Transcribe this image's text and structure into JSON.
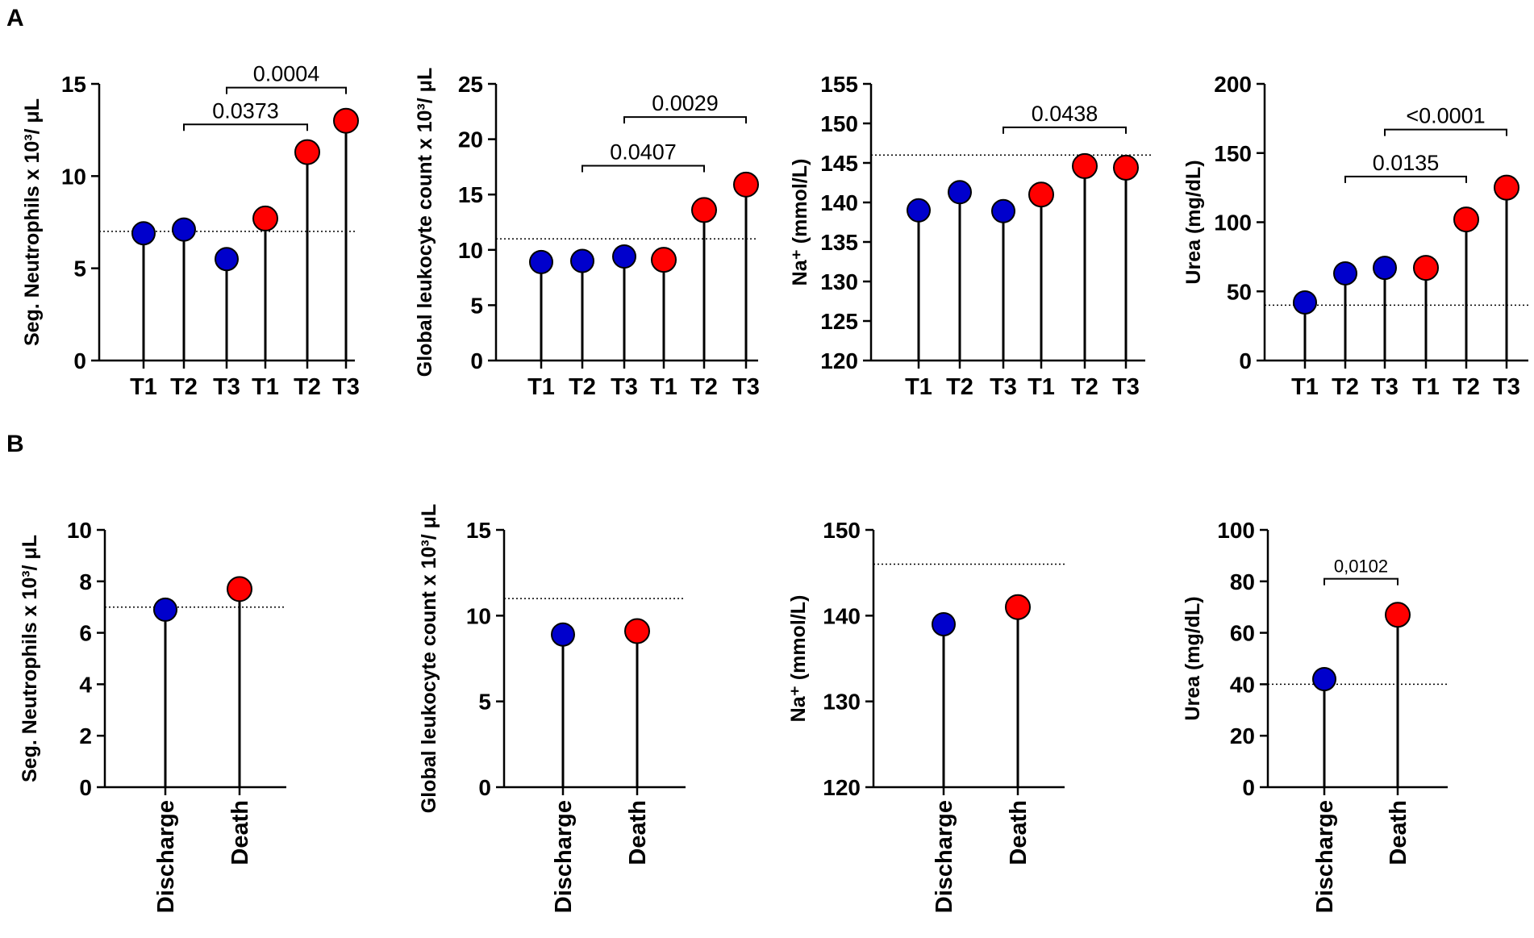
{
  "panels": {
    "A": "A",
    "B": "B"
  },
  "colors": {
    "survivor": "#0000cc",
    "death": "#ff0000"
  },
  "chart_data": [
    {
      "id": "A1",
      "type": "lollipop",
      "panel": "A",
      "ylabel": "Seg. Neutrophils x 10³/ μL",
      "ylim": [
        0,
        15
      ],
      "yticks": [
        0,
        5,
        10,
        15
      ],
      "categories": [
        "T1",
        "T2",
        "T3",
        "T1",
        "T2",
        "T3"
      ],
      "values": [
        6.9,
        7.1,
        5.5,
        7.7,
        11.3,
        13.0
      ],
      "groups": [
        "discharge",
        "discharge",
        "discharge",
        "death",
        "death",
        "death"
      ],
      "reference": 7.0,
      "comparisons": [
        {
          "from": 1,
          "to": 4,
          "y": 12.8,
          "label": "0.0373"
        },
        {
          "from": 2,
          "to": 5,
          "y": 14.8,
          "label": "0.0004"
        }
      ]
    },
    {
      "id": "A2",
      "type": "lollipop",
      "panel": "A",
      "ylabel": "Global leukocyte count x 10³/ μL",
      "ylim": [
        0,
        25
      ],
      "yticks": [
        0,
        5,
        10,
        15,
        20,
        25
      ],
      "categories": [
        "T1",
        "T2",
        "T3",
        "T1",
        "T2",
        "T3"
      ],
      "values": [
        8.9,
        9.0,
        9.4,
        9.1,
        13.6,
        15.9
      ],
      "groups": [
        "discharge",
        "discharge",
        "discharge",
        "death",
        "death",
        "death"
      ],
      "reference": 11.0,
      "comparisons": [
        {
          "from": 1,
          "to": 4,
          "y": 17.6,
          "label": "0.0407"
        },
        {
          "from": 2,
          "to": 5,
          "y": 22.0,
          "label": "0.0029"
        }
      ]
    },
    {
      "id": "A3",
      "type": "lollipop",
      "panel": "A",
      "ylabel": "Na⁺ (mmol/L)",
      "ylim": [
        120,
        155
      ],
      "yticks": [
        120,
        125,
        130,
        135,
        140,
        145,
        150,
        155
      ],
      "categories": [
        "T1",
        "T2",
        "T3",
        "T1",
        "T2",
        "T3"
      ],
      "values": [
        139.0,
        141.3,
        138.9,
        141.0,
        144.6,
        144.4
      ],
      "groups": [
        "discharge",
        "discharge",
        "discharge",
        "death",
        "death",
        "death"
      ],
      "reference": 146.0,
      "comparisons": [
        {
          "from": 2,
          "to": 5,
          "y": 149.5,
          "label": "0.0438"
        }
      ]
    },
    {
      "id": "A4",
      "type": "lollipop",
      "panel": "A",
      "ylabel": "Urea (mg/dL)",
      "ylim": [
        0,
        200
      ],
      "yticks": [
        0,
        50,
        100,
        150,
        200
      ],
      "categories": [
        "T1",
        "T2",
        "T3",
        "T1",
        "T2",
        "T3"
      ],
      "values": [
        42,
        63,
        67,
        67,
        102,
        125
      ],
      "groups": [
        "discharge",
        "discharge",
        "discharge",
        "death",
        "death",
        "death"
      ],
      "reference": 40,
      "comparisons": [
        {
          "from": 1,
          "to": 4,
          "y": 133,
          "label": "0.0135"
        },
        {
          "from": 2,
          "to": 5,
          "y": 167,
          "label": "<0.0001"
        }
      ]
    },
    {
      "id": "B1",
      "type": "lollipop",
      "panel": "B",
      "ylabel": "Seg. Neutrophils x 10³/ μL",
      "ylim": [
        0,
        10
      ],
      "yticks": [
        0,
        2,
        4,
        6,
        8,
        10
      ],
      "categories": [
        "Discharge",
        "Death"
      ],
      "values": [
        6.9,
        7.7
      ],
      "groups": [
        "discharge",
        "death"
      ],
      "reference": 7.0,
      "comparisons": []
    },
    {
      "id": "B2",
      "type": "lollipop",
      "panel": "B",
      "ylabel": "Global leukocyte count x 10³/ μL",
      "ylim": [
        0,
        15
      ],
      "yticks": [
        0,
        5,
        10,
        15
      ],
      "categories": [
        "Discharge",
        "Death"
      ],
      "values": [
        8.9,
        9.1
      ],
      "groups": [
        "discharge",
        "death"
      ],
      "reference": 11.0,
      "comparisons": []
    },
    {
      "id": "B3",
      "type": "lollipop",
      "panel": "B",
      "ylabel": "Na⁺ (mmol/L)",
      "ylim": [
        120,
        150
      ],
      "yticks": [
        120,
        130,
        140,
        150
      ],
      "categories": [
        "Discharge",
        "Death"
      ],
      "values": [
        139.0,
        141.0
      ],
      "groups": [
        "discharge",
        "death"
      ],
      "reference": 146.0,
      "comparisons": []
    },
    {
      "id": "B4",
      "type": "lollipop",
      "panel": "B",
      "ylabel": "Urea (mg/dL)",
      "ylim": [
        0,
        100
      ],
      "yticks": [
        0,
        20,
        40,
        60,
        80,
        100
      ],
      "categories": [
        "Discharge",
        "Death"
      ],
      "values": [
        42,
        67
      ],
      "groups": [
        "discharge",
        "death"
      ],
      "reference": 40,
      "comparisons": [
        {
          "from": 0,
          "to": 1,
          "y": 81,
          "label": "0,0102"
        }
      ]
    }
  ]
}
